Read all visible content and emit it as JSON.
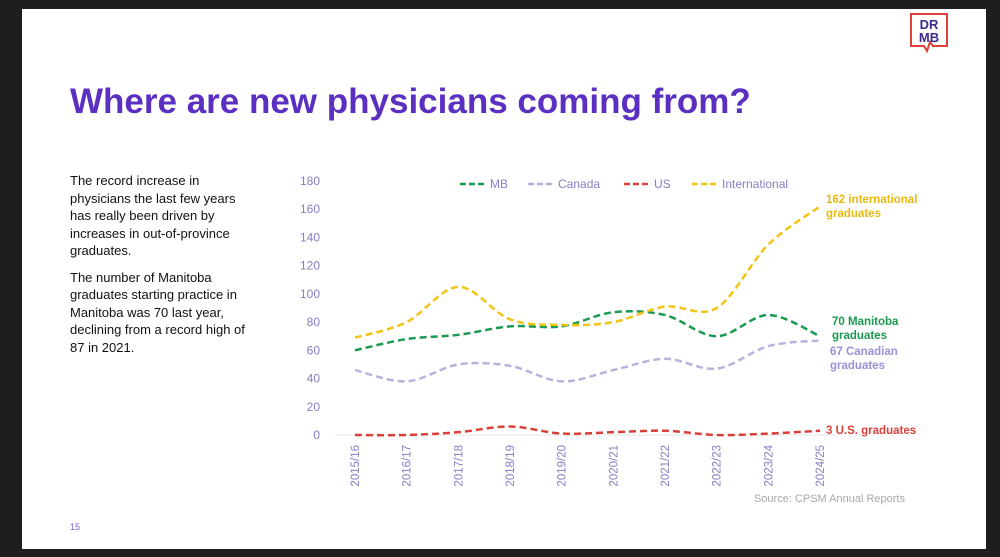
{
  "slide": {
    "title": "Where are new physicians coming from?",
    "paragraphs": [
      "The record increase in physicians the last few years has really been driven by increases in out-of-province graduates.",
      "The number of Manitoba graduates starting practice in Manitoba was 70 last year, declining from a record high of 87 in 2021."
    ],
    "page_number": "15",
    "logo_text": "DR MB",
    "source": "Source: CPSM Annual Reports"
  },
  "chart_data": {
    "type": "line",
    "categories": [
      "2015/16",
      "2016/17",
      "2017/18",
      "2018/19",
      "2019/20",
      "2020/21",
      "2021/22",
      "2022/23",
      "2023/24",
      "2024/25"
    ],
    "ylim": [
      0,
      180
    ],
    "yticks": [
      0,
      20,
      40,
      60,
      80,
      100,
      120,
      140,
      160,
      180
    ],
    "legend_position": "top",
    "grid": false,
    "line_style": "dashed-smooth",
    "series": [
      {
        "name": "MB",
        "color": "#1a9a50",
        "values": [
          60,
          68,
          71,
          77,
          77,
          87,
          85,
          70,
          85,
          70
        ],
        "annotation": "70 Manitoba graduates"
      },
      {
        "name": "Canada",
        "color": "#b8b2dc",
        "values": [
          46,
          38,
          50,
          49,
          38,
          46,
          54,
          47,
          63,
          67
        ],
        "annotation": "67 Canadian graduates",
        "annotation_color": "#9b8fd6"
      },
      {
        "name": "US",
        "color": "#d9403a",
        "values": [
          0,
          0,
          2,
          6,
          1,
          2,
          3,
          0,
          1,
          3
        ],
        "annotation": "3 U.S. graduates"
      },
      {
        "name": "International",
        "color": "#f2c414",
        "values": [
          69,
          80,
          105,
          82,
          78,
          80,
          91,
          90,
          135,
          162
        ],
        "annotation": "162 international graduates",
        "annotation_color": "#e8b90c"
      }
    ],
    "tick_color": "#8a7cc6"
  }
}
